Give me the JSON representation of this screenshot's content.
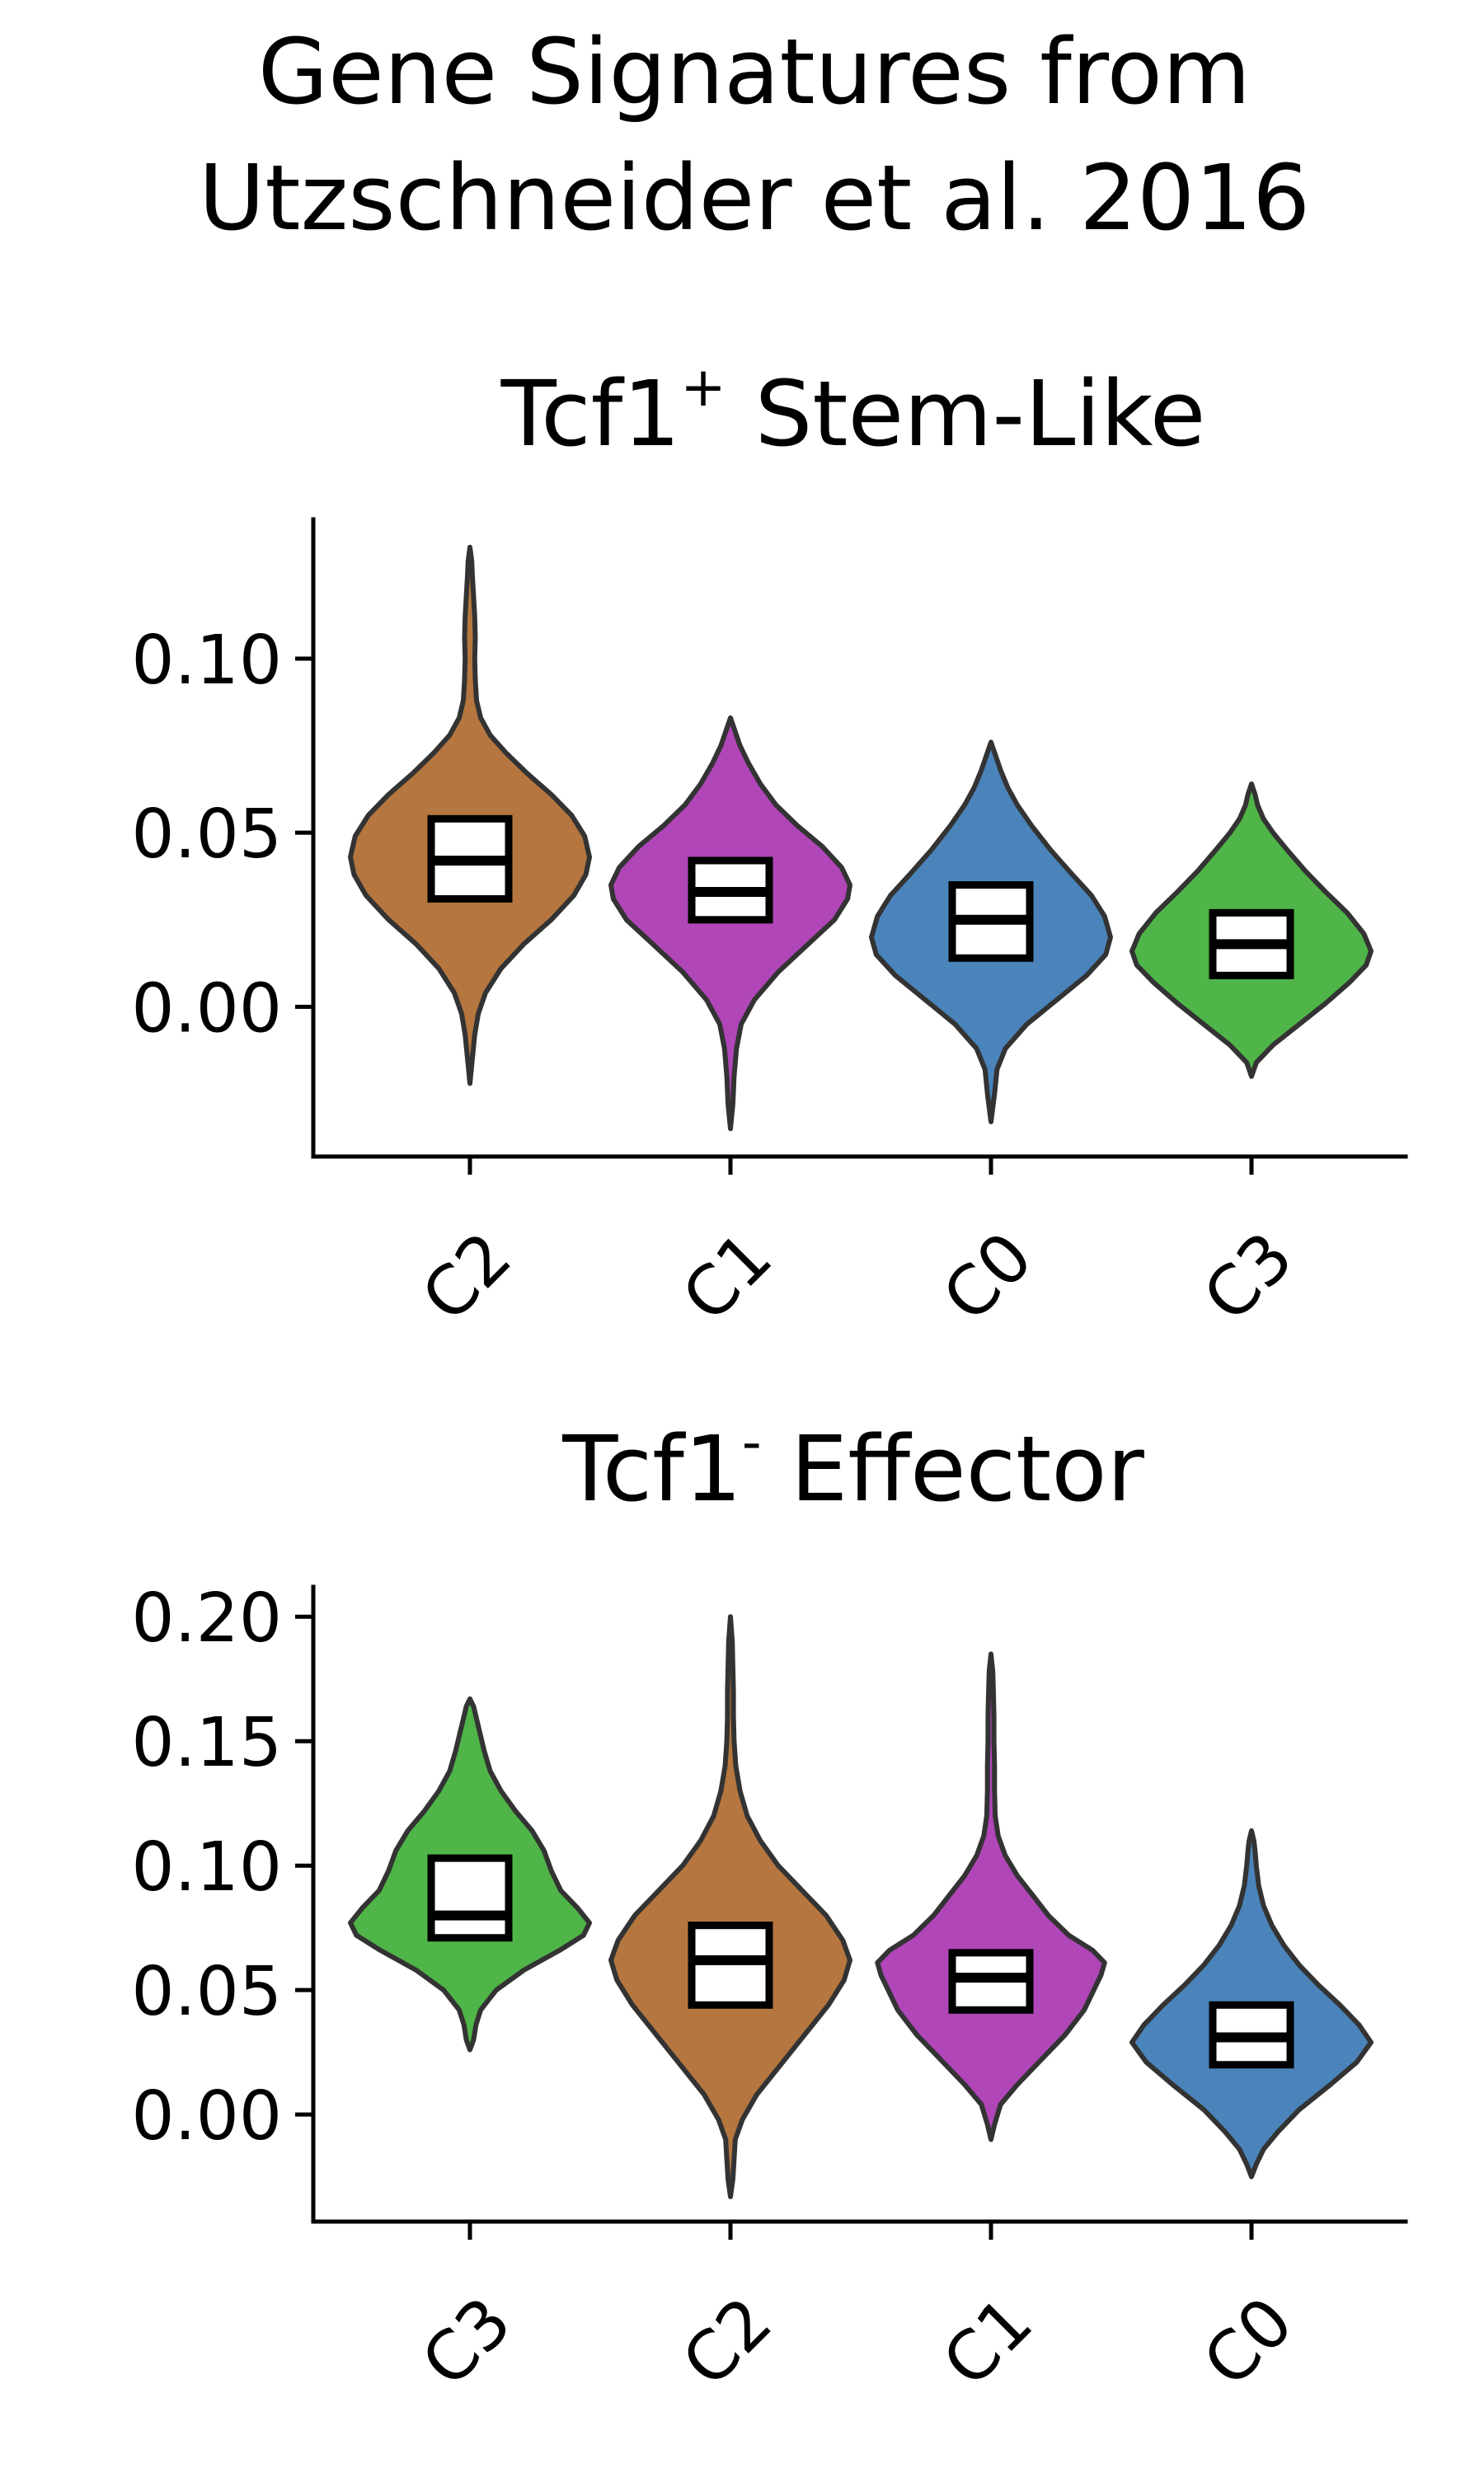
{
  "figure": {
    "title_line1": "Gene Signatures from",
    "title_line2": "Utzschneider et al. 2016"
  },
  "chart_data": [
    {
      "type": "violin",
      "title": "Tcf1",
      "title_superscript": "+",
      "title_suffix": " Stem-Like",
      "xlabel": "",
      "ylabel": "",
      "ylim": [
        -0.043,
        0.14
      ],
      "yticks": [
        0.0,
        0.05,
        0.1
      ],
      "ytick_labels": [
        "0.00",
        "0.05",
        "0.10"
      ],
      "grid": false,
      "categories": [
        "C2",
        "C1",
        "C0",
        "C3"
      ],
      "colors": [
        "#b5773f",
        "#b046b8",
        "#4a84ba",
        "#4fb548"
      ],
      "box_line_color": "#000000",
      "violin_edge_color": "#333333",
      "violins": [
        {
          "name": "C2",
          "q1": 0.031,
          "median": 0.042,
          "q3": 0.054,
          "density": [
            [
              -0.022,
              0.0
            ],
            [
              -0.015,
              0.02
            ],
            [
              -0.008,
              0.04
            ],
            [
              -0.002,
              0.07
            ],
            [
              0.004,
              0.13
            ],
            [
              0.011,
              0.26
            ],
            [
              0.018,
              0.45
            ],
            [
              0.025,
              0.68
            ],
            [
              0.032,
              0.87
            ],
            [
              0.038,
              0.97
            ],
            [
              0.043,
              1.0
            ],
            [
              0.049,
              0.96
            ],
            [
              0.055,
              0.85
            ],
            [
              0.061,
              0.68
            ],
            [
              0.067,
              0.48
            ],
            [
              0.073,
              0.3
            ],
            [
              0.078,
              0.17
            ],
            [
              0.083,
              0.09
            ],
            [
              0.088,
              0.055
            ],
            [
              0.094,
              0.045
            ],
            [
              0.1,
              0.04
            ],
            [
              0.106,
              0.045
            ],
            [
              0.112,
              0.04
            ],
            [
              0.118,
              0.03
            ],
            [
              0.124,
              0.02
            ],
            [
              0.128,
              0.015
            ],
            [
              0.132,
              0.0
            ]
          ]
        },
        {
          "name": "C1",
          "q1": 0.025,
          "median": 0.033,
          "q3": 0.042,
          "density": [
            [
              -0.035,
              0.0
            ],
            [
              -0.028,
              0.02
            ],
            [
              -0.02,
              0.03
            ],
            [
              -0.012,
              0.05
            ],
            [
              -0.005,
              0.09
            ],
            [
              0.002,
              0.2
            ],
            [
              0.01,
              0.4
            ],
            [
              0.018,
              0.65
            ],
            [
              0.025,
              0.87
            ],
            [
              0.031,
              0.98
            ],
            [
              0.035,
              1.0
            ],
            [
              0.04,
              0.93
            ],
            [
              0.046,
              0.77
            ],
            [
              0.052,
              0.56
            ],
            [
              0.058,
              0.38
            ],
            [
              0.064,
              0.25
            ],
            [
              0.07,
              0.15
            ],
            [
              0.075,
              0.08
            ],
            [
              0.079,
              0.04
            ],
            [
              0.083,
              0.0
            ]
          ]
        },
        {
          "name": "C0",
          "q1": 0.014,
          "median": 0.025,
          "q3": 0.035,
          "density": [
            [
              -0.033,
              0.0
            ],
            [
              -0.025,
              0.03
            ],
            [
              -0.018,
              0.05
            ],
            [
              -0.012,
              0.12
            ],
            [
              -0.005,
              0.3
            ],
            [
              0.002,
              0.55
            ],
            [
              0.009,
              0.8
            ],
            [
              0.015,
              0.96
            ],
            [
              0.02,
              1.0
            ],
            [
              0.026,
              0.95
            ],
            [
              0.032,
              0.84
            ],
            [
              0.038,
              0.68
            ],
            [
              0.045,
              0.5
            ],
            [
              0.052,
              0.34
            ],
            [
              0.058,
              0.22
            ],
            [
              0.063,
              0.14
            ],
            [
              0.068,
              0.08
            ],
            [
              0.072,
              0.04
            ],
            [
              0.076,
              0.0
            ]
          ]
        },
        {
          "name": "C3",
          "q1": 0.009,
          "median": 0.018,
          "q3": 0.027,
          "density": [
            [
              -0.02,
              0.0
            ],
            [
              -0.016,
              0.04
            ],
            [
              -0.011,
              0.18
            ],
            [
              -0.005,
              0.4
            ],
            [
              0.001,
              0.62
            ],
            [
              0.007,
              0.82
            ],
            [
              0.012,
              0.96
            ],
            [
              0.016,
              1.0
            ],
            [
              0.021,
              0.94
            ],
            [
              0.027,
              0.8
            ],
            [
              0.033,
              0.62
            ],
            [
              0.039,
              0.45
            ],
            [
              0.045,
              0.3
            ],
            [
              0.05,
              0.18
            ],
            [
              0.054,
              0.1
            ],
            [
              0.058,
              0.05
            ],
            [
              0.061,
              0.03
            ],
            [
              0.064,
              0.0
            ]
          ]
        }
      ]
    },
    {
      "type": "violin",
      "title": "Tcf1",
      "title_superscript": "-",
      "title_suffix": " Effector",
      "xlabel": "",
      "ylabel": "",
      "ylim": [
        -0.043,
        0.212
      ],
      "yticks": [
        0.0,
        0.05,
        0.1,
        0.15,
        0.2
      ],
      "ytick_labels": [
        "0.00",
        "0.05",
        "0.10",
        "0.15",
        "0.20"
      ],
      "grid": false,
      "categories": [
        "C3",
        "C2",
        "C1",
        "C0"
      ],
      "colors": [
        "#4fb548",
        "#b5773f",
        "#b046b8",
        "#4a84ba"
      ],
      "box_line_color": "#000000",
      "violin_edge_color": "#333333",
      "violins": [
        {
          "name": "C3",
          "q1": 0.071,
          "median": 0.08,
          "q3": 0.103,
          "density": [
            [
              0.026,
              0.0
            ],
            [
              0.03,
              0.03
            ],
            [
              0.036,
              0.05
            ],
            [
              0.042,
              0.09
            ],
            [
              0.05,
              0.22
            ],
            [
              0.058,
              0.45
            ],
            [
              0.066,
              0.75
            ],
            [
              0.072,
              0.95
            ],
            [
              0.077,
              1.0
            ],
            [
              0.083,
              0.9
            ],
            [
              0.09,
              0.76
            ],
            [
              0.098,
              0.68
            ],
            [
              0.106,
              0.62
            ],
            [
              0.114,
              0.52
            ],
            [
              0.122,
              0.38
            ],
            [
              0.13,
              0.26
            ],
            [
              0.138,
              0.17
            ],
            [
              0.146,
              0.12
            ],
            [
              0.154,
              0.08
            ],
            [
              0.16,
              0.05
            ],
            [
              0.164,
              0.03
            ],
            [
              0.167,
              0.0
            ]
          ]
        },
        {
          "name": "C2",
          "q1": 0.044,
          "median": 0.062,
          "q3": 0.076,
          "density": [
            [
              -0.033,
              0.0
            ],
            [
              -0.026,
              0.02
            ],
            [
              -0.018,
              0.03
            ],
            [
              -0.01,
              0.04
            ],
            [
              -0.002,
              0.1
            ],
            [
              0.008,
              0.22
            ],
            [
              0.02,
              0.42
            ],
            [
              0.032,
              0.62
            ],
            [
              0.044,
              0.82
            ],
            [
              0.054,
              0.95
            ],
            [
              0.062,
              1.0
            ],
            [
              0.07,
              0.94
            ],
            [
              0.08,
              0.8
            ],
            [
              0.09,
              0.6
            ],
            [
              0.1,
              0.4
            ],
            [
              0.11,
              0.25
            ],
            [
              0.12,
              0.14
            ],
            [
              0.13,
              0.08
            ],
            [
              0.14,
              0.045
            ],
            [
              0.15,
              0.03
            ],
            [
              0.16,
              0.025
            ],
            [
              0.17,
              0.025
            ],
            [
              0.18,
              0.02
            ],
            [
              0.19,
              0.015
            ],
            [
              0.2,
              0.0
            ]
          ]
        },
        {
          "name": "C1",
          "q1": 0.042,
          "median": 0.055,
          "q3": 0.065,
          "density": [
            [
              -0.01,
              0.0
            ],
            [
              -0.004,
              0.03
            ],
            [
              0.004,
              0.08
            ],
            [
              0.012,
              0.22
            ],
            [
              0.022,
              0.42
            ],
            [
              0.032,
              0.62
            ],
            [
              0.042,
              0.78
            ],
            [
              0.05,
              0.86
            ],
            [
              0.056,
              0.92
            ],
            [
              0.061,
              0.95
            ],
            [
              0.066,
              0.85
            ],
            [
              0.072,
              0.65
            ],
            [
              0.08,
              0.48
            ],
            [
              0.088,
              0.35
            ],
            [
              0.096,
              0.22
            ],
            [
              0.104,
              0.12
            ],
            [
              0.112,
              0.06
            ],
            [
              0.12,
              0.035
            ],
            [
              0.13,
              0.03
            ],
            [
              0.14,
              0.03
            ],
            [
              0.15,
              0.025
            ],
            [
              0.16,
              0.025
            ],
            [
              0.17,
              0.02
            ],
            [
              0.178,
              0.015
            ],
            [
              0.185,
              0.0
            ]
          ]
        },
        {
          "name": "C0",
          "q1": 0.02,
          "median": 0.031,
          "q3": 0.044,
          "density": [
            [
              -0.025,
              0.0
            ],
            [
              -0.02,
              0.04
            ],
            [
              -0.014,
              0.1
            ],
            [
              -0.007,
              0.22
            ],
            [
              0.002,
              0.4
            ],
            [
              0.012,
              0.66
            ],
            [
              0.021,
              0.88
            ],
            [
              0.029,
              1.0
            ],
            [
              0.036,
              0.9
            ],
            [
              0.044,
              0.74
            ],
            [
              0.052,
              0.56
            ],
            [
              0.06,
              0.4
            ],
            [
              0.068,
              0.27
            ],
            [
              0.076,
              0.17
            ],
            [
              0.084,
              0.1
            ],
            [
              0.092,
              0.06
            ],
            [
              0.1,
              0.04
            ],
            [
              0.106,
              0.03
            ],
            [
              0.11,
              0.02
            ],
            [
              0.114,
              0.0
            ]
          ]
        }
      ]
    }
  ]
}
